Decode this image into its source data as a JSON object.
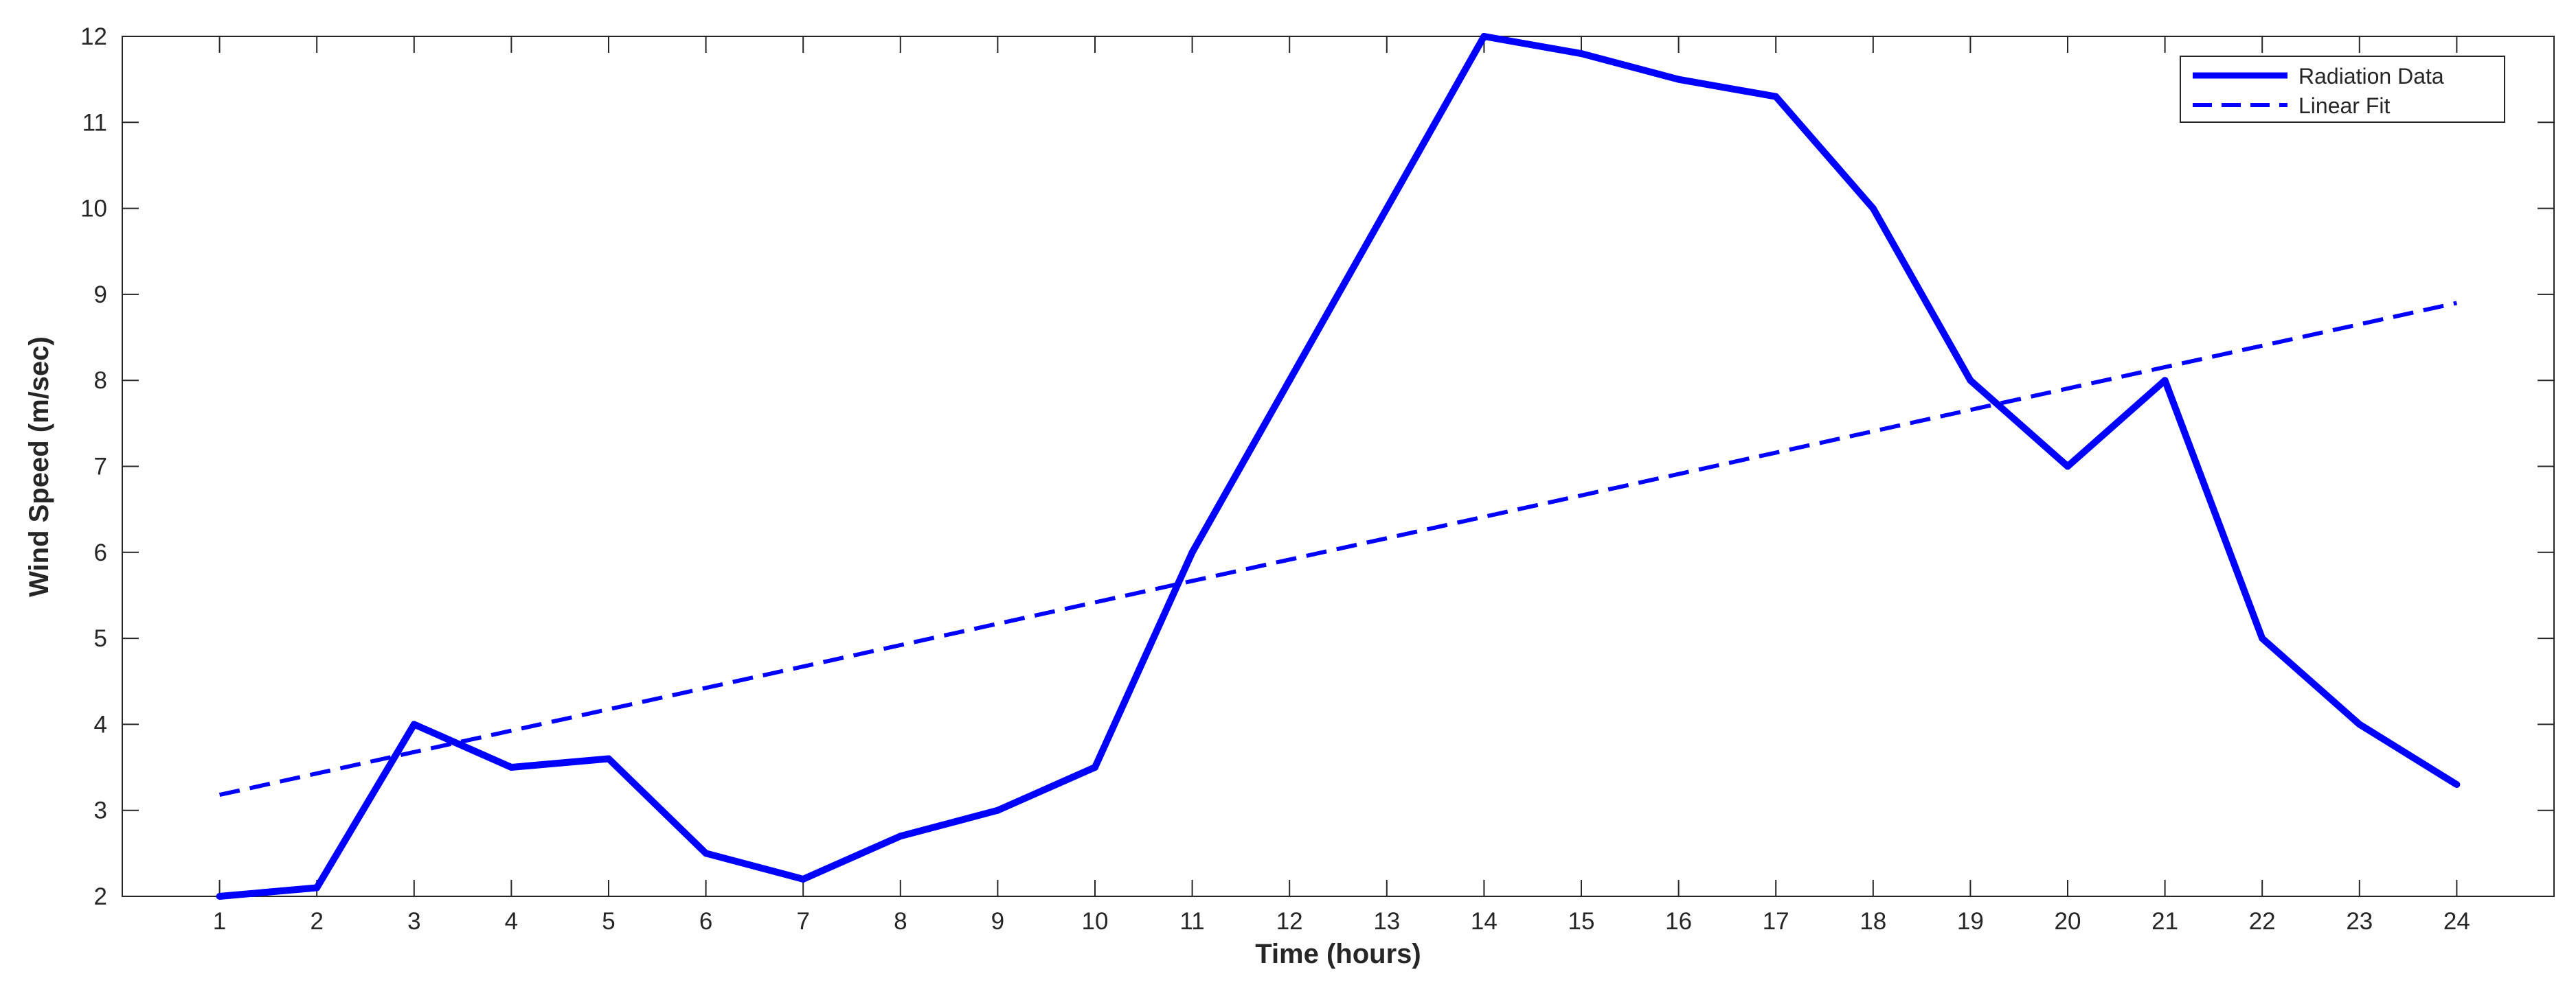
{
  "chart_data": {
    "type": "line",
    "title": "",
    "xlabel": "Time (hours)",
    "ylabel": "Wind Speed (m/sec)",
    "xlim": [
      0,
      25
    ],
    "ylim": [
      2,
      12
    ],
    "x_ticks": [
      1,
      2,
      3,
      4,
      5,
      6,
      7,
      8,
      9,
      10,
      11,
      12,
      13,
      14,
      15,
      16,
      17,
      18,
      19,
      20,
      21,
      22,
      23,
      24
    ],
    "y_ticks": [
      2,
      3,
      4,
      5,
      6,
      7,
      8,
      9,
      10,
      11,
      12
    ],
    "grid": false,
    "legend_position": "top-right",
    "series": [
      {
        "name": "Radiation Data",
        "style": "solid",
        "color": "#0000ff",
        "x": [
          1,
          2,
          3,
          4,
          5,
          6,
          7,
          8,
          9,
          10,
          11,
          12,
          13,
          14,
          15,
          16,
          17,
          18,
          19,
          20,
          21,
          22,
          23,
          24
        ],
        "values": [
          2.0,
          2.1,
          4.0,
          3.5,
          3.6,
          2.5,
          2.2,
          2.7,
          3.0,
          3.5,
          6.0,
          8.0,
          10.0,
          12.0,
          11.8,
          11.5,
          11.3,
          10.0,
          8.0,
          7.0,
          8.0,
          5.0,
          4.0,
          3.3
        ]
      },
      {
        "name": "Linear Fit",
        "style": "dashed",
        "color": "#0000ff",
        "x": [
          1,
          24
        ],
        "values": [
          3.18,
          8.9
        ]
      }
    ]
  }
}
